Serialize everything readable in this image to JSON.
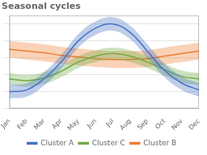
{
  "chart_data": {
    "type": "line",
    "title": "Seasonal cycles",
    "categories": [
      "Jan",
      "Feb",
      "Mar",
      "Apr",
      "May",
      "Jun",
      "Jul",
      "Aug",
      "Sep",
      "Oct",
      "Nov",
      "Dec"
    ],
    "series": [
      {
        "name": "Cluster A",
        "color": "#4472c4",
        "values": [
          20,
          22,
          35,
          55,
          80,
          95,
          100,
          90,
          68,
          45,
          30,
          22
        ],
        "low": [
          12,
          14,
          27,
          47,
          72,
          87,
          92,
          82,
          60,
          37,
          22,
          14
        ],
        "high": [
          28,
          30,
          43,
          63,
          88,
          103,
          108,
          98,
          76,
          53,
          38,
          30
        ]
      },
      {
        "name": "Cluster B",
        "color": "#ed7d31",
        "values": [
          70,
          68,
          66,
          63,
          61,
          59,
          58,
          58,
          59,
          62,
          65,
          68
        ],
        "low": [
          60,
          58,
          56,
          53,
          51,
          49,
          48,
          48,
          49,
          52,
          55,
          58
        ],
        "high": [
          80,
          78,
          76,
          73,
          71,
          69,
          68,
          68,
          69,
          72,
          75,
          78
        ]
      },
      {
        "name": "Cluster C",
        "color": "#70ad47",
        "values": [
          35,
          33,
          36,
          44,
          55,
          62,
          65,
          62,
          55,
          46,
          38,
          35
        ],
        "low": [
          28,
          26,
          29,
          37,
          48,
          55,
          58,
          55,
          48,
          39,
          31,
          28
        ],
        "high": [
          42,
          40,
          43,
          51,
          62,
          69,
          72,
          69,
          62,
          53,
          45,
          42
        ]
      }
    ],
    "ylim": [
      0,
      110
    ],
    "yticks": [
      0,
      20,
      40,
      60,
      80,
      100
    ],
    "grid": true,
    "legend": "bottom",
    "tick_labels": "x"
  }
}
